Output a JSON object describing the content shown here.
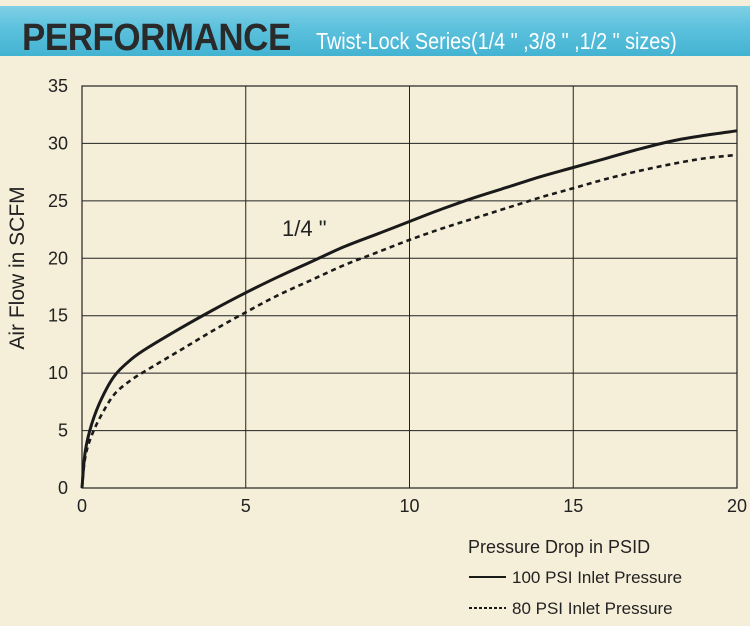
{
  "header": {
    "title": "PERFORMANCE",
    "subtitle": "Twist-Lock Series(1/4 \" ,3/8 \" ,1/2 \" sizes)"
  },
  "chart_data": {
    "type": "line",
    "title": "",
    "xlabel": "Pressure Drop in PSID",
    "ylabel": "Air Flow in SCFM",
    "xlim": [
      0,
      20
    ],
    "ylim": [
      0,
      35
    ],
    "xticks": [
      "0",
      "5",
      "10",
      "15",
      "20"
    ],
    "yticks": [
      "0",
      "5",
      "10",
      "15",
      "20",
      "25",
      "30",
      "35"
    ],
    "grid": true,
    "annotation": "1/4 \"",
    "legend_placement": "bottom-right",
    "series": [
      {
        "name": "100 PSI Inlet Pressure",
        "style": "solid",
        "x": [
          0,
          0.1,
          0.3,
          0.6,
          1,
          1.5,
          2,
          3,
          4,
          5,
          6,
          7,
          8,
          9,
          10,
          11,
          12,
          13,
          14,
          15,
          16,
          17,
          18,
          19,
          20
        ],
        "y": [
          0,
          3.2,
          5.6,
          7.8,
          9.8,
          11.2,
          12.2,
          13.9,
          15.5,
          17.0,
          18.4,
          19.7,
          21.0,
          22.1,
          23.2,
          24.3,
          25.3,
          26.2,
          27.1,
          27.9,
          28.7,
          29.5,
          30.2,
          30.7,
          31.1
        ]
      },
      {
        "name": "80 PSI Inlet Pressure",
        "style": "dashed",
        "x": [
          0,
          0.1,
          0.3,
          0.6,
          1,
          1.5,
          2,
          3,
          4,
          5,
          6,
          7,
          8,
          9,
          10,
          11,
          12,
          13,
          14,
          15,
          16,
          17,
          18,
          19,
          20
        ],
        "y": [
          0,
          2.7,
          4.6,
          6.4,
          8.2,
          9.4,
          10.3,
          12.0,
          13.7,
          15.3,
          16.8,
          18.1,
          19.4,
          20.5,
          21.6,
          22.6,
          23.5,
          24.4,
          25.3,
          26.1,
          26.9,
          27.6,
          28.2,
          28.7,
          29.0
        ]
      }
    ],
    "colors": {
      "line": "#1a1a1a",
      "grid": "#222222",
      "background": "#f5efd9",
      "banner": "#5cc1dd"
    }
  }
}
